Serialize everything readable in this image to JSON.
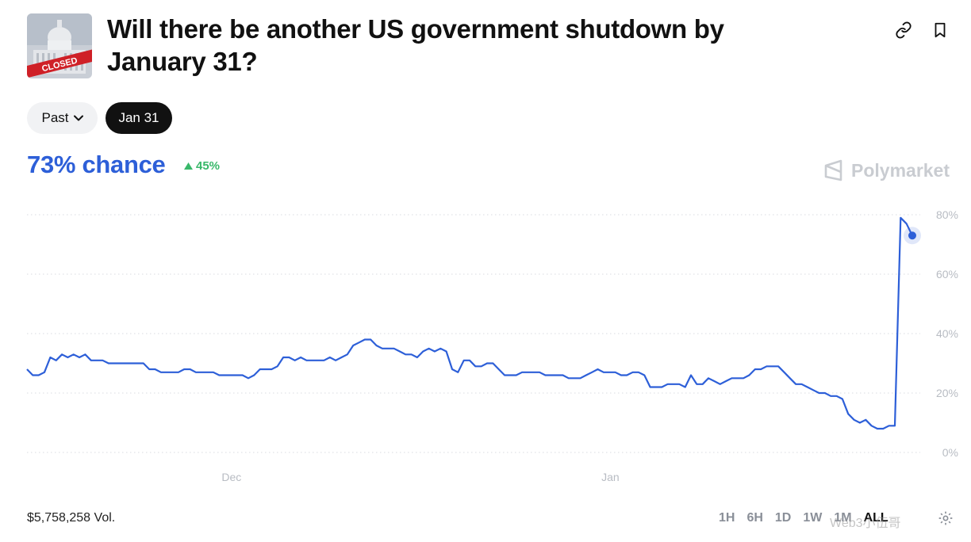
{
  "header": {
    "title": "Will there be another US government shutdown by January 31?",
    "image_stamp": "CLOSED"
  },
  "filters": {
    "past_label": "Past",
    "selected_date": "Jan 31"
  },
  "summary": {
    "chance": "73% chance",
    "delta": "45%",
    "delta_direction": "up"
  },
  "brand": {
    "name": "Polymarket"
  },
  "colors": {
    "accent": "#2d5fd8",
    "positive": "#39b86a",
    "selected_pill": "#111111"
  },
  "chart_data": {
    "type": "line",
    "x_ticks": [
      "Dec",
      "Jan"
    ],
    "y_ticks": [
      "0%",
      "20%",
      "40%",
      "60%",
      "80%"
    ],
    "ylim": [
      0,
      80
    ],
    "grid": true,
    "series": [
      {
        "color": "#2d5fd8",
        "values": [
          28,
          26,
          26,
          27,
          32,
          31,
          33,
          32,
          33,
          32,
          33,
          31,
          31,
          31,
          30,
          30,
          30,
          30,
          30,
          30,
          30,
          28,
          28,
          27,
          27,
          27,
          27,
          28,
          28,
          27,
          27,
          27,
          27,
          26,
          26,
          26,
          26,
          26,
          25,
          26,
          28,
          28,
          28,
          29,
          32,
          32,
          31,
          32,
          31,
          31,
          31,
          31,
          32,
          31,
          32,
          33,
          36,
          37,
          38,
          38,
          36,
          35,
          35,
          35,
          34,
          33,
          33,
          32,
          34,
          35,
          34,
          35,
          34,
          28,
          27,
          31,
          31,
          29,
          29,
          30,
          30,
          28,
          26,
          26,
          26,
          27,
          27,
          27,
          27,
          26,
          26,
          26,
          26,
          25,
          25,
          25,
          26,
          27,
          28,
          27,
          27,
          27,
          26,
          26,
          27,
          27,
          26,
          22,
          22,
          22,
          23,
          23,
          23,
          22,
          26,
          23,
          23,
          25,
          24,
          23,
          24,
          25,
          25,
          25,
          26,
          28,
          28,
          29,
          29,
          29,
          27,
          25,
          23,
          23,
          22,
          21,
          20,
          20,
          19,
          19,
          18,
          13,
          11,
          10,
          11,
          9,
          8,
          8,
          9,
          9,
          79,
          77,
          73
        ]
      }
    ]
  },
  "footer": {
    "volume": "$5,758,258 Vol.",
    "ranges": [
      "1H",
      "6H",
      "1D",
      "1W",
      "1M",
      "ALL"
    ],
    "active_range": "ALL",
    "watermark": "Web3小伍哥"
  }
}
